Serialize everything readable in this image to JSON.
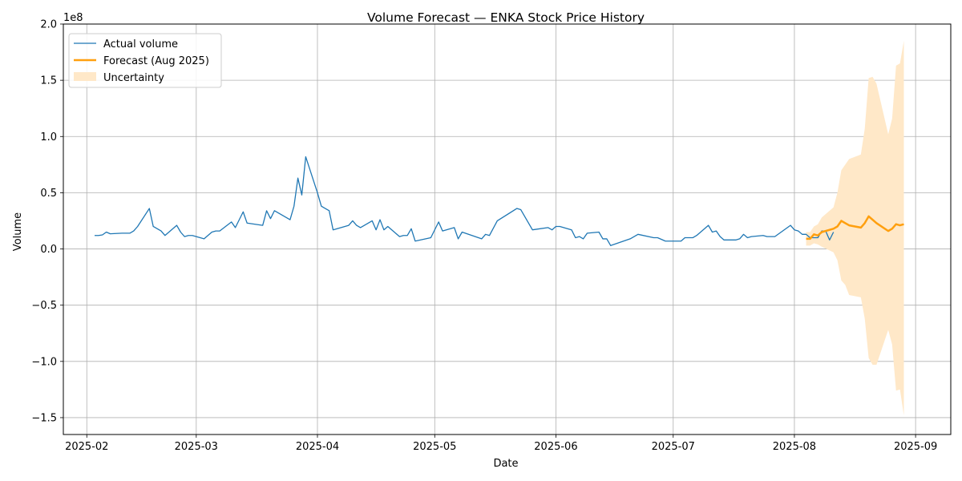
{
  "chart_data": {
    "type": "line",
    "title": "Volume Forecast — ENKA Stock Price History",
    "xlabel": "Date",
    "ylabel": "Volume",
    "y_offset_label": "1e8",
    "xlim": [
      "2025-01-26",
      "2025-09-10"
    ],
    "ylim": [
      -1.65,
      2.0
    ],
    "y_units_multiplier": 100000000,
    "grid": true,
    "legend_position": "top-left",
    "x_ticks": [
      "2025-02",
      "2025-03",
      "2025-04",
      "2025-05",
      "2025-06",
      "2025-07",
      "2025-08",
      "2025-09"
    ],
    "y_ticks": [
      "-1.5",
      "-1.0",
      "-0.5",
      "0.0",
      "0.5",
      "1.0",
      "1.5",
      "2.0"
    ],
    "colors": {
      "actual": "#1f77b4",
      "forecast": "#ff9f0e",
      "uncertainty": "#ffe8c8"
    },
    "series": [
      {
        "name": "Actual volume",
        "kind": "line",
        "points": [
          [
            "2025-02-03",
            0.12
          ],
          [
            "2025-02-04",
            0.12
          ],
          [
            "2025-02-05",
            0.125
          ],
          [
            "2025-02-06",
            0.15
          ],
          [
            "2025-02-07",
            0.135
          ],
          [
            "2025-02-10",
            0.14
          ],
          [
            "2025-02-11",
            0.14
          ],
          [
            "2025-02-12",
            0.14
          ],
          [
            "2025-02-13",
            0.16
          ],
          [
            "2025-02-14",
            0.2
          ],
          [
            "2025-02-17",
            0.36
          ],
          [
            "2025-02-18",
            0.2
          ],
          [
            "2025-02-20",
            0.16
          ],
          [
            "2025-02-21",
            0.12
          ],
          [
            "2025-02-24",
            0.21
          ],
          [
            "2025-02-25",
            0.15
          ],
          [
            "2025-02-26",
            0.11
          ],
          [
            "2025-02-27",
            0.12
          ],
          [
            "2025-02-28",
            0.12
          ],
          [
            "2025-03-03",
            0.09
          ],
          [
            "2025-03-05",
            0.15
          ],
          [
            "2025-03-06",
            0.16
          ],
          [
            "2025-03-07",
            0.16
          ],
          [
            "2025-03-10",
            0.24
          ],
          [
            "2025-03-11",
            0.19
          ],
          [
            "2025-03-13",
            0.33
          ],
          [
            "2025-03-14",
            0.23
          ],
          [
            "2025-03-18",
            0.21
          ],
          [
            "2025-03-19",
            0.34
          ],
          [
            "2025-03-20",
            0.27
          ],
          [
            "2025-03-21",
            0.34
          ],
          [
            "2025-03-25",
            0.26
          ],
          [
            "2025-03-26",
            0.38
          ],
          [
            "2025-03-27",
            0.63
          ],
          [
            "2025-03-28",
            0.48
          ],
          [
            "2025-03-29",
            0.82
          ],
          [
            "2025-04-01",
            0.5
          ],
          [
            "2025-04-02",
            0.38
          ],
          [
            "2025-04-03",
            0.36
          ],
          [
            "2025-04-04",
            0.34
          ],
          [
            "2025-04-05",
            0.17
          ],
          [
            "2025-04-09",
            0.21
          ],
          [
            "2025-04-10",
            0.25
          ],
          [
            "2025-04-11",
            0.21
          ],
          [
            "2025-04-12",
            0.19
          ],
          [
            "2025-04-15",
            0.25
          ],
          [
            "2025-04-16",
            0.17
          ],
          [
            "2025-04-17",
            0.26
          ],
          [
            "2025-04-18",
            0.17
          ],
          [
            "2025-04-19",
            0.2
          ],
          [
            "2025-04-22",
            0.11
          ],
          [
            "2025-04-23",
            0.12
          ],
          [
            "2025-04-24",
            0.12
          ],
          [
            "2025-04-25",
            0.18
          ],
          [
            "2025-04-26",
            0.07
          ],
          [
            "2025-04-30",
            0.1
          ],
          [
            "2025-05-02",
            0.24
          ],
          [
            "2025-05-03",
            0.16
          ],
          [
            "2025-05-06",
            0.19
          ],
          [
            "2025-05-07",
            0.09
          ],
          [
            "2025-05-08",
            0.15
          ],
          [
            "2025-05-13",
            0.09
          ],
          [
            "2025-05-14",
            0.13
          ],
          [
            "2025-05-15",
            0.12
          ],
          [
            "2025-05-17",
            0.25
          ],
          [
            "2025-05-22",
            0.36
          ],
          [
            "2025-05-23",
            0.35
          ],
          [
            "2025-05-26",
            0.17
          ],
          [
            "2025-05-30",
            0.19
          ],
          [
            "2025-05-31",
            0.17
          ],
          [
            "2025-06-01",
            0.2
          ],
          [
            "2025-06-02",
            0.2
          ],
          [
            "2025-06-05",
            0.17
          ],
          [
            "2025-06-06",
            0.1
          ],
          [
            "2025-06-07",
            0.11
          ],
          [
            "2025-06-08",
            0.09
          ],
          [
            "2025-06-09",
            0.14
          ],
          [
            "2025-06-12",
            0.15
          ],
          [
            "2025-06-13",
            0.09
          ],
          [
            "2025-06-14",
            0.09
          ],
          [
            "2025-06-15",
            0.03
          ],
          [
            "2025-06-20",
            0.09
          ],
          [
            "2025-06-22",
            0.13
          ],
          [
            "2025-06-26",
            0.1
          ],
          [
            "2025-06-27",
            0.1
          ],
          [
            "2025-06-29",
            0.07
          ],
          [
            "2025-07-03",
            0.07
          ],
          [
            "2025-07-04",
            0.1
          ],
          [
            "2025-07-06",
            0.1
          ],
          [
            "2025-07-07",
            0.12
          ],
          [
            "2025-07-10",
            0.21
          ],
          [
            "2025-07-11",
            0.15
          ],
          [
            "2025-07-12",
            0.16
          ],
          [
            "2025-07-13",
            0.11
          ],
          [
            "2025-07-14",
            0.08
          ],
          [
            "2025-07-17",
            0.08
          ],
          [
            "2025-07-18",
            0.09
          ],
          [
            "2025-07-19",
            0.13
          ],
          [
            "2025-07-20",
            0.1
          ],
          [
            "2025-07-21",
            0.11
          ],
          [
            "2025-07-24",
            0.12
          ],
          [
            "2025-07-25",
            0.11
          ],
          [
            "2025-07-26",
            0.11
          ],
          [
            "2025-07-27",
            0.11
          ],
          [
            "2025-07-31",
            0.21
          ],
          [
            "2025-08-01",
            0.17
          ],
          [
            "2025-08-02",
            0.16
          ],
          [
            "2025-08-03",
            0.13
          ],
          [
            "2025-08-04",
            0.13
          ],
          [
            "2025-08-05",
            0.1
          ],
          [
            "2025-08-07",
            0.1
          ],
          [
            "2025-08-08",
            0.16
          ],
          [
            "2025-08-09",
            0.16
          ],
          [
            "2025-08-10",
            0.08
          ],
          [
            "2025-08-11",
            0.15
          ]
        ]
      },
      {
        "name": "Forecast (Aug 2025)",
        "kind": "line",
        "points": [
          [
            "2025-08-04",
            0.09
          ],
          [
            "2025-08-05",
            0.09
          ],
          [
            "2025-08-06",
            0.13
          ],
          [
            "2025-08-07",
            0.12
          ],
          [
            "2025-08-08",
            0.15
          ],
          [
            "2025-08-11",
            0.18
          ],
          [
            "2025-08-12",
            0.2
          ],
          [
            "2025-08-13",
            0.25
          ],
          [
            "2025-08-14",
            0.23
          ],
          [
            "2025-08-15",
            0.21
          ],
          [
            "2025-08-18",
            0.19
          ],
          [
            "2025-08-19",
            0.23
          ],
          [
            "2025-08-20",
            0.29
          ],
          [
            "2025-08-21",
            0.26
          ],
          [
            "2025-08-22",
            0.23
          ],
          [
            "2025-08-25",
            0.16
          ],
          [
            "2025-08-26",
            0.18
          ],
          [
            "2025-08-27",
            0.22
          ],
          [
            "2025-08-28",
            0.21
          ],
          [
            "2025-08-29",
            0.22
          ]
        ]
      },
      {
        "name": "Uncertainty",
        "kind": "band",
        "points": [
          [
            "2025-08-04",
            0.03,
            0.15
          ],
          [
            "2025-08-05",
            0.03,
            0.15
          ],
          [
            "2025-08-06",
            0.05,
            0.2
          ],
          [
            "2025-08-07",
            0.04,
            0.22
          ],
          [
            "2025-08-08",
            0.02,
            0.28
          ],
          [
            "2025-08-11",
            -0.03,
            0.37
          ],
          [
            "2025-08-12",
            -0.1,
            0.5
          ],
          [
            "2025-08-13",
            -0.28,
            0.7
          ],
          [
            "2025-08-14",
            -0.32,
            0.75
          ],
          [
            "2025-08-15",
            -0.41,
            0.8
          ],
          [
            "2025-08-18",
            -0.43,
            0.84
          ],
          [
            "2025-08-19",
            -0.62,
            1.07
          ],
          [
            "2025-08-20",
            -0.97,
            1.52
          ],
          [
            "2025-08-21",
            -1.03,
            1.53
          ],
          [
            "2025-08-22",
            -1.03,
            1.47
          ],
          [
            "2025-08-25",
            -0.72,
            1.02
          ],
          [
            "2025-08-26",
            -0.85,
            1.16
          ],
          [
            "2025-08-27",
            -1.26,
            1.63
          ],
          [
            "2025-08-28",
            -1.25,
            1.65
          ],
          [
            "2025-08-29",
            -1.48,
            1.85
          ]
        ]
      }
    ]
  }
}
